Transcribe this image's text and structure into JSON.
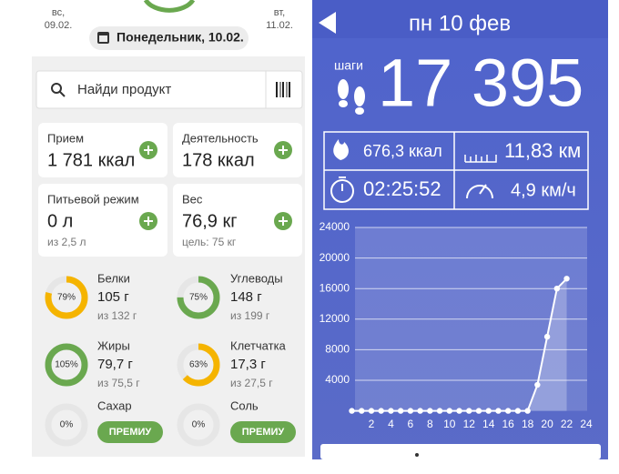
{
  "food_app": {
    "prev_day": {
      "weekday": "вс,",
      "date": "09.02."
    },
    "next_day": {
      "weekday": "вт,",
      "date": "11.02."
    },
    "current_date": "Понедельник, 10.02.",
    "search_placeholder": "Найди продукт",
    "cards": [
      {
        "title": "Прием",
        "value": "1 781 ккал"
      },
      {
        "title": "Деятельность",
        "value": "178 ккал"
      },
      {
        "title": "Питьевой режим",
        "value": "0 л",
        "note": "из 2,5 л"
      },
      {
        "title": "Вес",
        "value": "76,9 кг",
        "note": "цель: 75 кг"
      }
    ],
    "nutrients": [
      {
        "name": "Белки",
        "ring": {
          "value": 79,
          "label": "79%"
        },
        "amount": "105 г",
        "goal": "из 132 г",
        "color": "#f5b400"
      },
      {
        "name": "Углеводы",
        "ring": {
          "value": 75,
          "label": "75%"
        },
        "amount": "148 г",
        "goal": "из 199 г",
        "color": "#6aa84f"
      },
      {
        "name": "Жиры",
        "ring": {
          "value": 105,
          "label": "105%"
        },
        "amount": "79,7 г",
        "goal": "из 75,5 г",
        "color": "#6aa84f"
      },
      {
        "name": "Клетчатка",
        "ring": {
          "value": 63,
          "label": "63%"
        },
        "amount": "17,3 г",
        "goal": "из 27,5 г",
        "color": "#f5b400"
      },
      {
        "name": "Сахар",
        "ring": {
          "value": 0,
          "label": "0%"
        },
        "button": "ПРЕМИУ",
        "color": "#6aa84f"
      },
      {
        "name": "Соль",
        "ring": {
          "value": 0,
          "label": "0%"
        },
        "button": "ПРЕМИУ",
        "color": "#6aa84f"
      }
    ]
  },
  "activity": {
    "date": "пн 10 фев",
    "steps_label": "шаги",
    "steps": "17 395",
    "stats": [
      "676,3 ккал",
      "11,83 км",
      "02:25:52",
      "4,9 км/ч"
    ],
    "chart": {
      "type": "line",
      "x": [
        0,
        1,
        2,
        3,
        4,
        5,
        6,
        7,
        8,
        9,
        10,
        11,
        12,
        13,
        14,
        15,
        16,
        17,
        18,
        19,
        20,
        21,
        22
      ],
      "values": [
        0,
        0,
        0,
        0,
        0,
        0,
        0,
        0,
        0,
        0,
        0,
        0,
        0,
        0,
        0,
        0,
        0,
        0,
        0,
        3400,
        9700,
        16000,
        17300
      ],
      "xlim": [
        0,
        24
      ],
      "xticks": [
        2,
        4,
        6,
        8,
        10,
        12,
        14,
        16,
        18,
        20,
        22,
        24
      ],
      "ylim": [
        0,
        24000
      ],
      "yticks": [
        4000,
        8000,
        12000,
        16000,
        20000,
        24000
      ],
      "grid": true,
      "color": "#ffffff"
    }
  }
}
